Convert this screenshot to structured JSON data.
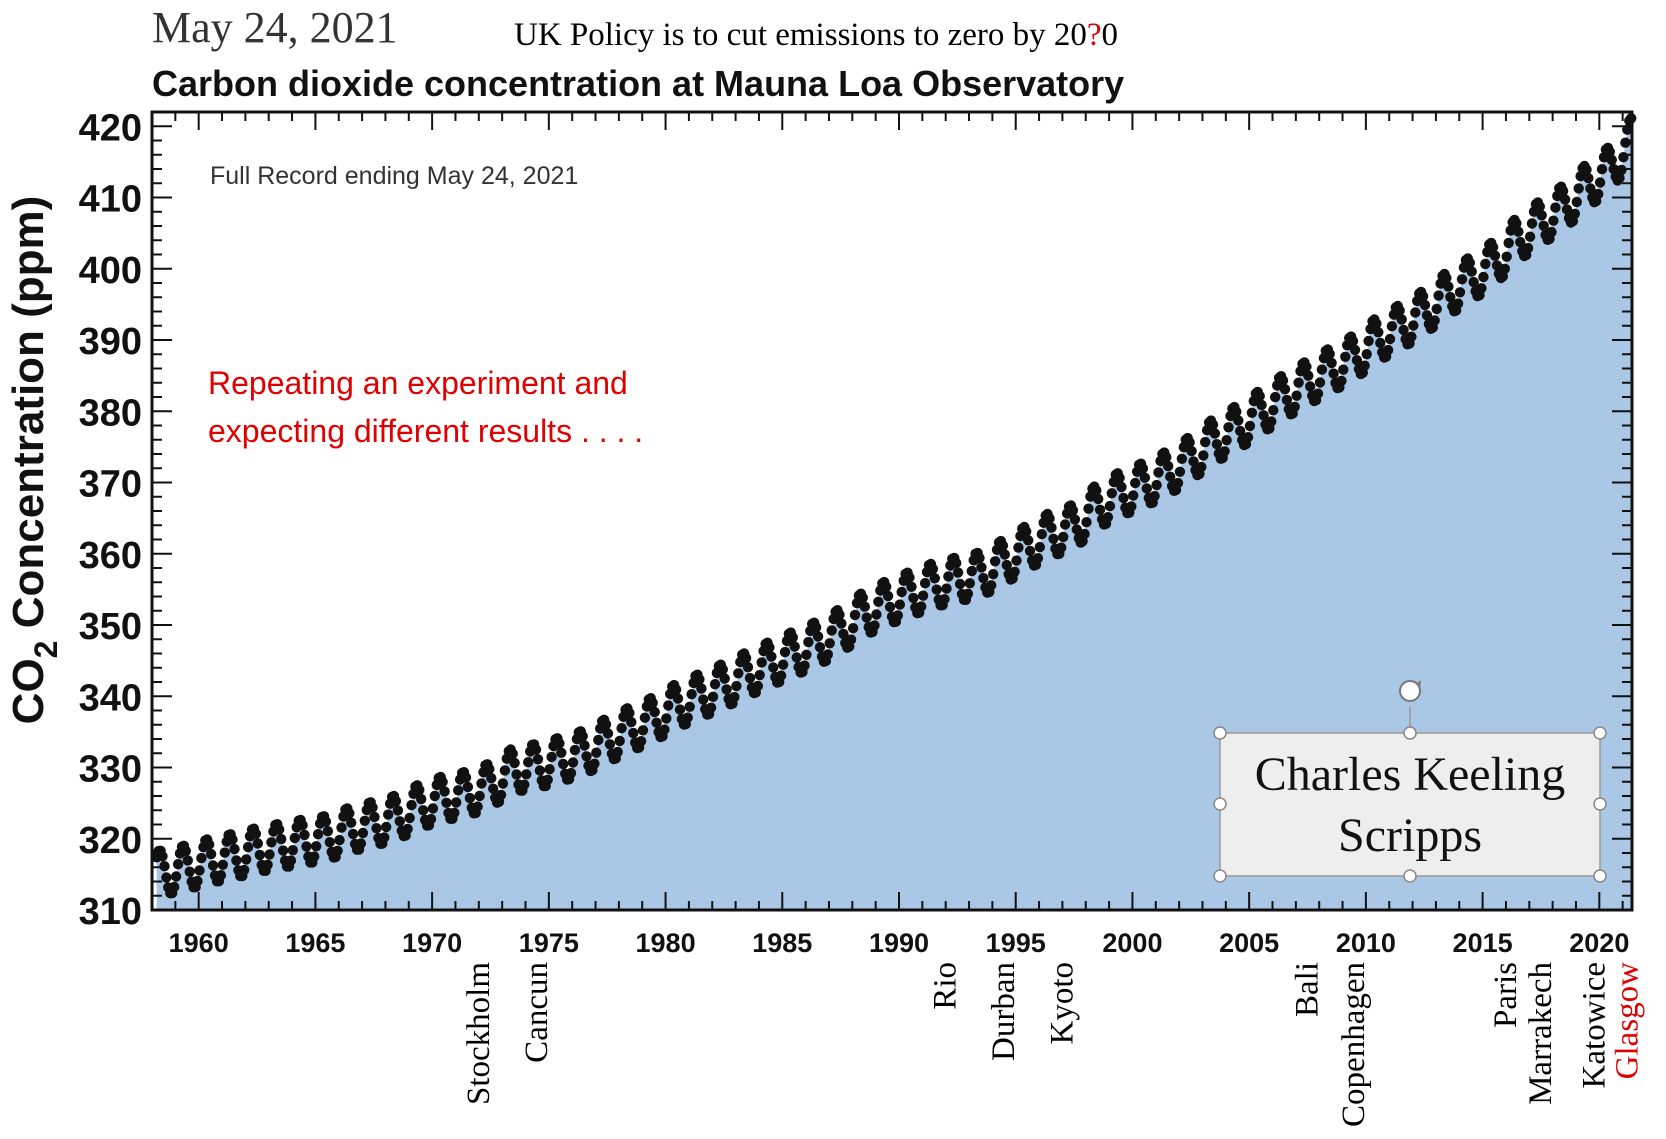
{
  "header": {
    "date": "May 24, 2021",
    "policy_prefix": "UK Policy is to cut emissions to zero by 20",
    "policy_mark": "?",
    "policy_suffix": "0",
    "policy_mark_color": "#e00000"
  },
  "chart_data": {
    "type": "scatter",
    "title": "Carbon dioxide concentration at Mauna Loa Observatory",
    "subtitle": "Full Record ending May 24, 2021",
    "ylabel_main": "CO",
    "ylabel_sub": "2",
    "ylabel_rest": " Concentration (ppm)",
    "xlim": [
      1958,
      2021.4
    ],
    "ylim": [
      310,
      422
    ],
    "x_ticks": [
      1960,
      1965,
      1970,
      1975,
      1980,
      1985,
      1990,
      1995,
      2000,
      2005,
      2010,
      2015,
      2020
    ],
    "x_tick_labels": [
      "1960",
      "1965",
      "1970",
      "1975",
      "1980",
      "1985",
      "1990",
      "1995",
      "2000",
      "2005",
      "2010",
      "2015",
      "2020"
    ],
    "y_ticks": [
      310,
      320,
      330,
      340,
      350,
      360,
      370,
      380,
      390,
      400,
      410,
      420
    ],
    "y_tick_labels": [
      "310",
      "320",
      "330",
      "340",
      "350",
      "360",
      "370",
      "380",
      "390",
      "400",
      "410",
      "420"
    ],
    "fill_color": "#aac7e6",
    "marker_color": "#111111",
    "series": [
      {
        "x": [
          1958.5,
          1959.5,
          1960.5,
          1961.5,
          1962.5,
          1963.5,
          1964.5,
          1965.5,
          1966.5,
          1967.5,
          1968.5,
          1969.5,
          1970.5,
          1971.5,
          1972.5,
          1973.5,
          1974.5,
          1975.5,
          1976.5,
          1977.5,
          1978.5,
          1979.5,
          1980.5,
          1981.5,
          1982.5,
          1983.5,
          1984.5,
          1985.5,
          1986.5,
          1987.5,
          1988.5,
          1989.5,
          1990.5,
          1991.5,
          1992.5,
          1993.5,
          1994.5,
          1995.5,
          1996.5,
          1997.5,
          1998.5,
          1999.5,
          2000.5,
          2001.5,
          2002.5,
          2003.5,
          2004.5,
          2005.5,
          2006.5,
          2007.5,
          2008.5,
          2009.5,
          2010.5,
          2011.5,
          2012.5,
          2013.5,
          2014.5,
          2015.5,
          2016.5,
          2017.5,
          2018.5,
          2019.5,
          2020.5,
          2021.35
        ],
        "y": [
          315.2,
          316.0,
          316.9,
          317.6,
          318.4,
          319.0,
          319.6,
          320.1,
          321.3,
          322.1,
          323.0,
          324.6,
          325.7,
          326.3,
          327.5,
          329.7,
          330.2,
          331.1,
          332.1,
          333.8,
          335.4,
          336.8,
          338.7,
          340.1,
          341.5,
          343.1,
          344.6,
          346.0,
          347.4,
          349.2,
          351.6,
          353.1,
          354.4,
          355.6,
          356.4,
          357.1,
          358.9,
          360.9,
          362.7,
          363.8,
          366.7,
          368.4,
          369.7,
          371.3,
          373.4,
          375.9,
          377.7,
          379.9,
          382.1,
          384.0,
          385.8,
          387.6,
          390.1,
          391.9,
          393.9,
          396.5,
          398.6,
          400.8,
          404.2,
          406.5,
          408.7,
          411.7,
          414.2,
          418.0
        ]
      }
    ],
    "seasonal_amplitude_ppm": 3.2
  },
  "annotation": {
    "line1": "Repeating an experiment and",
    "line2": "expecting different results . . . .",
    "color": "#e00000"
  },
  "textbox": {
    "line1": "Charles Keeling",
    "line2": "Scripps"
  },
  "summits": [
    {
      "label": "Stockholm",
      "year": 1972,
      "color": "#000000"
    },
    {
      "label": "Cancun",
      "year": 1974.5,
      "color": "#000000"
    },
    {
      "label": "Rio",
      "year": 1992,
      "color": "#000000"
    },
    {
      "label": "Durban",
      "year": 1994.5,
      "color": "#000000"
    },
    {
      "label": "Kyoto",
      "year": 1997,
      "color": "#000000"
    },
    {
      "label": "Bali",
      "year": 2007.5,
      "color": "#000000"
    },
    {
      "label": "Copenhagen",
      "year": 2009.5,
      "color": "#000000"
    },
    {
      "label": "Paris",
      "year": 2016,
      "color": "#000000"
    },
    {
      "label": "Marrakech",
      "year": 2017.5,
      "color": "#000000"
    },
    {
      "label": "Katowice",
      "year": 2019.8,
      "color": "#000000"
    },
    {
      "label": "Glasgow",
      "year": 2021.2,
      "color": "#e00000"
    }
  ]
}
